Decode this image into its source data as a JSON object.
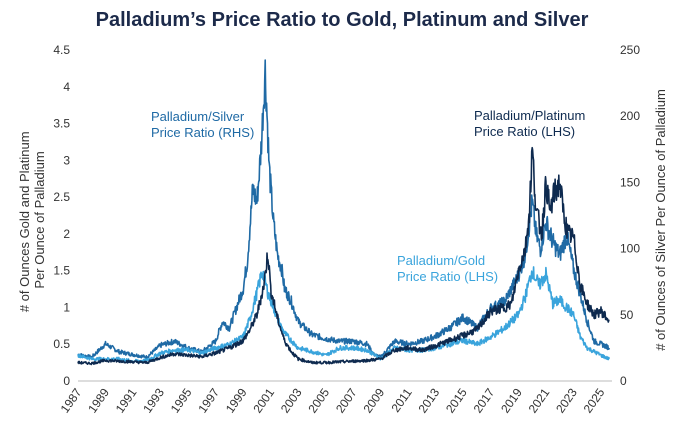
{
  "chart_data": {
    "type": "line",
    "title": "Palladium’s Price Ratio to Gold, Platinum and Silver",
    "ylabel_left": [
      "# of Ounces Gold and Platinum",
      "Per Ounce of Palladium"
    ],
    "ylabel_right": "# of Ounces of Silver Per Ounce of Palladium",
    "xlim": [
      1987,
      2025.8
    ],
    "ylim_left": [
      0,
      4.5
    ],
    "ylim_right": [
      0,
      250
    ],
    "x_ticks": [
      "1987",
      "1989",
      "1991",
      "1993",
      "1995",
      "1997",
      "1999",
      "2001",
      "2003",
      "2005",
      "2007",
      "2009",
      "2011",
      "2013",
      "2015",
      "2017",
      "2019",
      "2021",
      "2023",
      "2025"
    ],
    "y_ticks_left": [
      "0",
      "0.5",
      "1",
      "1.5",
      "2",
      "2.5",
      "3",
      "3.5",
      "4",
      "4.5"
    ],
    "y_ticks_right": [
      "0",
      "50",
      "100",
      "150",
      "200",
      "250"
    ],
    "series": [
      {
        "name": "Palladium/Silver Price Ratio (RHS)",
        "axis": "right",
        "color": "#1f6aa5",
        "label": [
          "Palladium/Silver",
          "Price Ratio (RHS)"
        ],
        "x": [
          1987,
          1988,
          1989,
          1990,
          1991,
          1992,
          1993,
          1994,
          1995,
          1996,
          1997,
          1997.5,
          1998,
          1998.5,
          1999,
          1999.3,
          1999.7,
          2000,
          2000.3,
          2000.6,
          2000.9,
          2001.2,
          2001.5,
          2001.8,
          2002,
          2002.5,
          2003,
          2004,
          2005,
          2006,
          2007,
          2008,
          2008.5,
          2009,
          2010,
          2011,
          2012,
          2013,
          2014,
          2015,
          2016,
          2017,
          2018,
          2019,
          2019.5,
          2020,
          2020.3,
          2020.6,
          2021,
          2021.5,
          2022,
          2022.5,
          2023,
          2023.5,
          2024,
          2024.5,
          2025,
          2025.6
        ],
        "y": [
          20,
          18,
          28,
          22,
          20,
          18,
          27,
          30,
          25,
          22,
          30,
          45,
          40,
          55,
          70,
          90,
          145,
          135,
          175,
          235,
          160,
          120,
          95,
          85,
          70,
          60,
          45,
          35,
          32,
          30,
          30,
          28,
          20,
          18,
          30,
          28,
          30,
          34,
          40,
          48,
          40,
          55,
          60,
          80,
          95,
          135,
          110,
          100,
          120,
          105,
          95,
          110,
          85,
          65,
          45,
          30,
          28,
          25
        ]
      },
      {
        "name": "Palladium/Platinum Price Ratio (LHS)",
        "axis": "left",
        "color": "#0e2a4f",
        "label": [
          "Palladium/Platinum",
          "Price Ratio (LHS)"
        ],
        "x": [
          1987,
          1988,
          1989,
          1990,
          1991,
          1992,
          1993,
          1994,
          1995,
          1996,
          1997,
          1998,
          1999,
          1999.5,
          2000,
          2000.5,
          2000.8,
          2001,
          2001.5,
          2002,
          2002.5,
          2003,
          2004,
          2005,
          2006,
          2007,
          2008,
          2009,
          2010,
          2011,
          2012,
          2013,
          2014,
          2015,
          2016,
          2017,
          2018,
          2018.5,
          2019,
          2019.5,
          2019.8,
          2020,
          2020.3,
          2020.7,
          2021,
          2021.3,
          2021.6,
          2022,
          2022.3,
          2022.6,
          2023,
          2023.5,
          2024,
          2024.5,
          2025,
          2025.6
        ],
        "y": [
          0.25,
          0.24,
          0.28,
          0.27,
          0.26,
          0.25,
          0.32,
          0.37,
          0.35,
          0.33,
          0.38,
          0.45,
          0.55,
          0.7,
          0.9,
          1.3,
          1.75,
          1.25,
          0.85,
          0.55,
          0.4,
          0.3,
          0.25,
          0.25,
          0.26,
          0.27,
          0.28,
          0.3,
          0.42,
          0.45,
          0.42,
          0.48,
          0.55,
          0.62,
          0.7,
          0.95,
          1.0,
          1.05,
          1.5,
          1.8,
          2.3,
          3.15,
          2.3,
          2.0,
          2.7,
          2.3,
          2.55,
          2.7,
          2.25,
          2.0,
          1.95,
          1.3,
          1.05,
          0.9,
          0.95,
          0.82
        ]
      },
      {
        "name": "Palladium/Gold Price Ratio (LHS)",
        "axis": "left",
        "color": "#3aa4dc",
        "label": [
          "Palladium/Gold",
          "Price Ratio (LHS)"
        ],
        "x": [
          1987,
          1988,
          1989,
          1990,
          1991,
          1992,
          1993,
          1994,
          1995,
          1996,
          1997,
          1998,
          1999,
          1999.5,
          2000,
          2000.4,
          2000.8,
          2001.2,
          2001.6,
          2002,
          2003,
          2004,
          2005,
          2006,
          2007,
          2008,
          2009,
          2010,
          2011,
          2012,
          2013,
          2014,
          2015,
          2016,
          2017,
          2018,
          2019,
          2019.5,
          2020,
          2020.5,
          2021,
          2021.5,
          2022,
          2022.5,
          2023,
          2023.5,
          2024,
          2024.5,
          2025,
          2025.6
        ],
        "y": [
          0.35,
          0.3,
          0.3,
          0.3,
          0.27,
          0.28,
          0.38,
          0.42,
          0.42,
          0.38,
          0.45,
          0.5,
          0.6,
          0.85,
          1.2,
          1.5,
          1.2,
          1.0,
          0.8,
          0.65,
          0.45,
          0.4,
          0.35,
          0.45,
          0.45,
          0.42,
          0.3,
          0.45,
          0.42,
          0.42,
          0.45,
          0.5,
          0.55,
          0.5,
          0.6,
          0.72,
          0.9,
          1.15,
          1.5,
          1.3,
          1.45,
          1.05,
          1.1,
          1.0,
          0.9,
          0.6,
          0.45,
          0.4,
          0.35,
          0.3
        ]
      }
    ]
  }
}
